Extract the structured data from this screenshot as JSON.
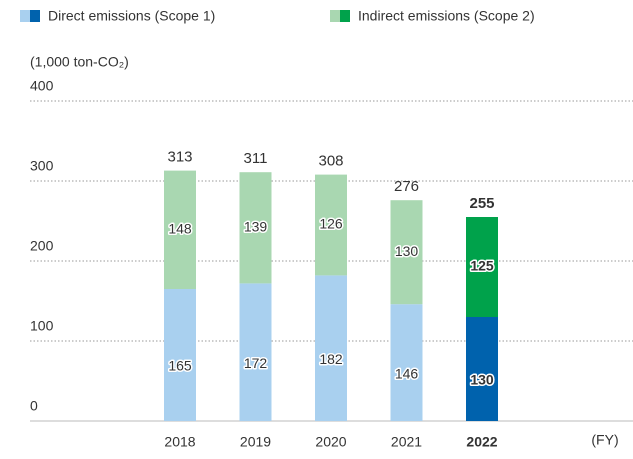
{
  "chart_data": {
    "type": "stacked_bar",
    "unit_label": "(1,000 ton-CO₂)",
    "x_label": "(FY)",
    "categories": [
      "2018",
      "2019",
      "2020",
      "2021",
      "2022"
    ],
    "highlight": "2022",
    "series": [
      {
        "name": "Direct emissions (Scope 1)",
        "color": "#a9d0ef",
        "highlight_color": "#0062ad",
        "values": [
          165,
          172,
          182,
          146,
          130
        ]
      },
      {
        "name": "Indirect emissions (Scope 2)",
        "color": "#a9d7b1",
        "highlight_color": "#00a24b",
        "values": [
          148,
          139,
          126,
          130,
          125
        ]
      }
    ],
    "totals": [
      313,
      311,
      308,
      276,
      255
    ],
    "ylim": [
      0,
      400
    ],
    "yticks": [
      0,
      100,
      200,
      300,
      400
    ],
    "grid": true
  }
}
